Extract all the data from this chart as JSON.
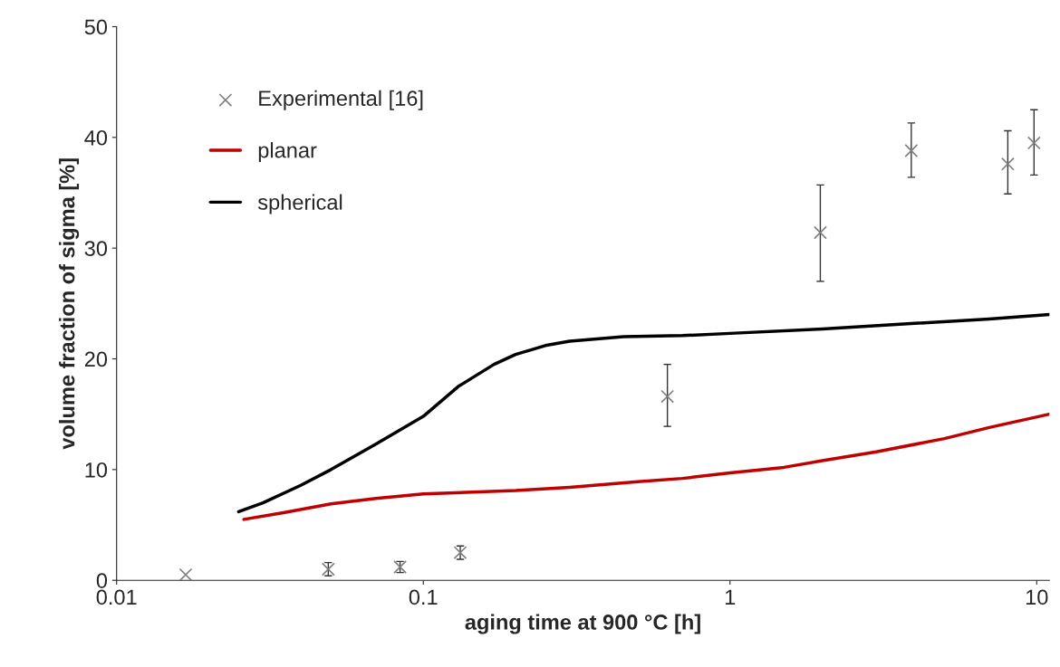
{
  "chart_data": {
    "type": "line",
    "xlabel": "aging time at 900 °C [h]",
    "ylabel": "volume fraction of sigma [%]",
    "log": "x",
    "xlim": [
      0.01,
      11
    ],
    "xticks": [
      0.01,
      0.1,
      1,
      10
    ],
    "ylim": [
      0,
      50
    ],
    "yticks": [
      0,
      10,
      20,
      30,
      40,
      50
    ],
    "grid": false,
    "legend": "top left",
    "series": [
      {
        "name": "Experimental [16]",
        "type": "scatter",
        "marker": "cross",
        "color": "#7f7f7f",
        "x": [
          0.0168,
          0.049,
          0.084,
          0.132,
          0.625,
          1.97,
          3.9,
          8.05,
          9.8
        ],
        "values": [
          0.5,
          1.0,
          1.2,
          2.5,
          16.6,
          31.4,
          38.8,
          37.6,
          39.5
        ],
        "errors": [
          null,
          [
            0.4,
            1.6
          ],
          [
            0.7,
            1.7
          ],
          [
            1.9,
            3.1
          ],
          [
            13.9,
            19.5
          ],
          [
            27.0,
            35.7
          ],
          [
            36.4,
            41.3
          ],
          [
            34.9,
            40.6
          ],
          [
            36.6,
            42.5
          ]
        ]
      },
      {
        "name": "planar",
        "color": "#c00000",
        "x": [
          0.026,
          0.035,
          0.05,
          0.07,
          0.1,
          0.2,
          0.3,
          0.5,
          0.7,
          1,
          1.5,
          2,
          3,
          5,
          7,
          11
        ],
        "values": [
          5.5,
          6.1,
          6.9,
          7.4,
          7.8,
          8.1,
          8.4,
          8.9,
          9.2,
          9.7,
          10.2,
          10.8,
          11.6,
          12.8,
          13.8,
          15.0
        ]
      },
      {
        "name": "spherical",
        "color": "#000000",
        "x": [
          0.025,
          0.03,
          0.04,
          0.05,
          0.07,
          0.1,
          0.13,
          0.17,
          0.2,
          0.25,
          0.3,
          0.45,
          0.7,
          1,
          2,
          4,
          7,
          11
        ],
        "values": [
          6.2,
          7.0,
          8.6,
          10.0,
          12.3,
          14.8,
          17.5,
          19.5,
          20.4,
          21.2,
          21.6,
          22.0,
          22.1,
          22.3,
          22.7,
          23.2,
          23.6,
          24.0
        ]
      }
    ]
  }
}
